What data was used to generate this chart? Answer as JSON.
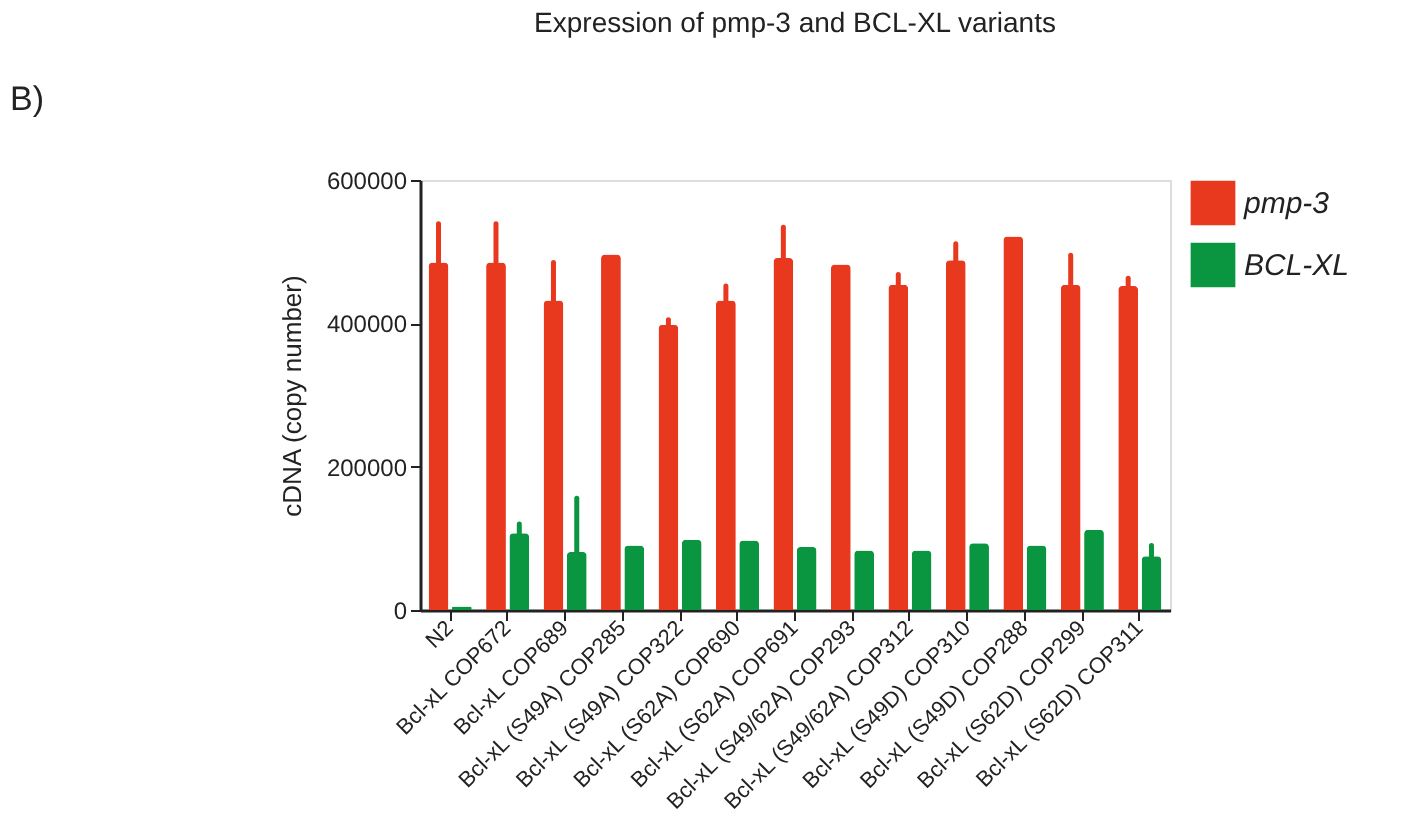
{
  "chart_data": {
    "type": "bar",
    "title": "Expression of pmp-3 and BCL-XL variants",
    "ylabel": "cDNA (copy number)",
    "annotations": [
      "B)"
    ],
    "categories": [
      "N2",
      "Bcl-xL COP672",
      "Bcl-xL COP689",
      "Bcl-xL (S49A) COP285",
      "Bcl-xL (S49A) COP322",
      "Bcl-xL (S62A) COP690",
      "Bcl-xL (S62A)  COP691",
      "Bcl-xL (S49/62A) COP293",
      "Bcl-xL (S49/62A) COP312",
      "Bcl-xL (S49D) COP310",
      "Bcl-xL (S49D) COP288",
      "Bcl-xL (S62D) COP299",
      "Bcl-xL (S62D) COP311"
    ],
    "series": [
      {
        "name": "pmp-3",
        "color": "#e8391f",
        "values": [
          485000,
          485000,
          432000,
          496000,
          398000,
          432000,
          491000,
          482000,
          454000,
          488000,
          521000,
          454000,
          452000
        ],
        "errors": [
          [
            485000,
            539000
          ],
          [
            485000,
            539000
          ],
          [
            432000,
            485000
          ],
          null,
          [
            398000,
            405000
          ],
          [
            432000,
            452000
          ],
          [
            491000,
            534000
          ],
          null,
          [
            454000,
            468000
          ],
          [
            488000,
            511000
          ],
          null,
          [
            454000,
            495000
          ],
          [
            452000,
            463000
          ]
        ]
      },
      {
        "name": "BCL-XL",
        "color": "#0a9640",
        "values": [
          5000,
          107000,
          81000,
          90000,
          98000,
          97000,
          88000,
          83000,
          83000,
          93000,
          90000,
          112000,
          75000
        ],
        "errors": [
          null,
          [
            107000,
            120000
          ],
          [
            81000,
            156000
          ],
          null,
          null,
          null,
          null,
          null,
          null,
          null,
          null,
          null,
          [
            75000,
            90000
          ]
        ]
      }
    ],
    "ylim": [
      0,
      600000
    ],
    "yticks": [
      0,
      200000,
      400000,
      600000
    ],
    "grid": false,
    "legend": "top right"
  }
}
